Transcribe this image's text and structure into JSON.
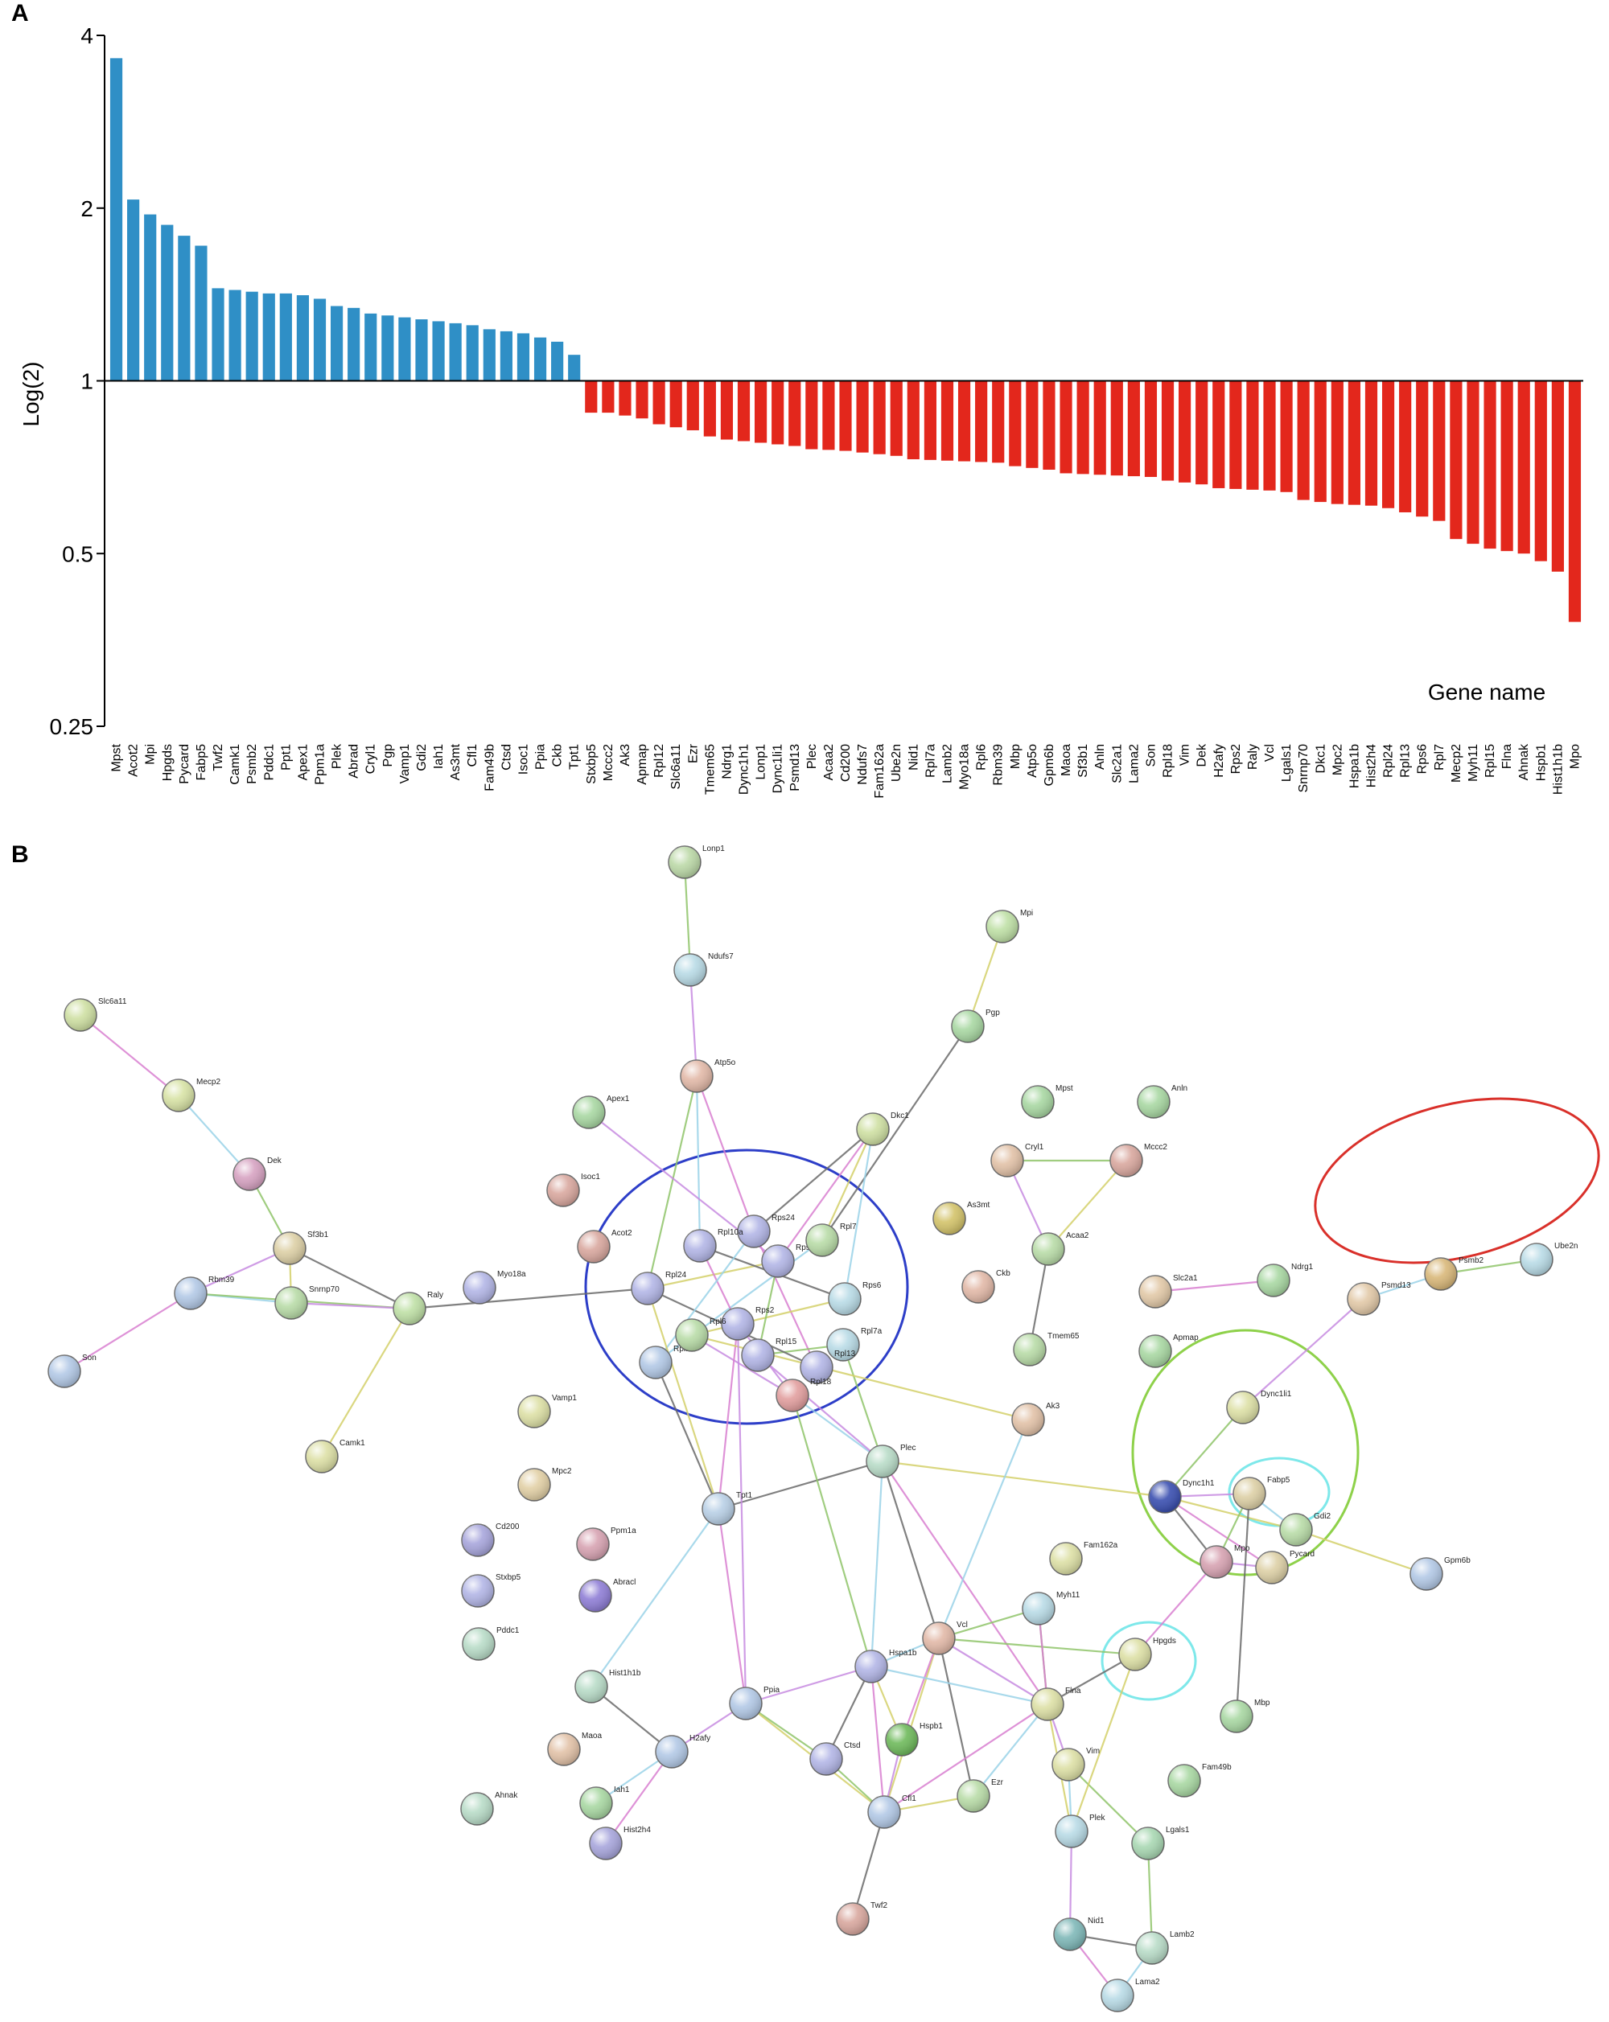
{
  "panels": {
    "a": "A",
    "b": "B"
  },
  "chart_data": {
    "type": "bar",
    "ylabel": "Log(2)",
    "xlabel": "Gene name",
    "y_scale": "log2",
    "baseline": 1,
    "yticks": [
      4,
      2,
      1,
      0.5,
      0.25
    ],
    "ylim": [
      0.25,
      4
    ],
    "colors": {
      "up": "#2f8fc6",
      "down": "#e3271c"
    },
    "categories": [
      "Mpst",
      "Acot2",
      "Mpi",
      "Hpgds",
      "Pycard",
      "Fabp5",
      "Twf2",
      "Camk1",
      "Psmb2",
      "Pddc1",
      "Ppt1",
      "Apex1",
      "Ppm1a",
      "Plek",
      "Abrad",
      "Cryl1",
      "Pgp",
      "Vamp1",
      "Gdi2",
      "Iah1",
      "As3mt",
      "Cfl1",
      "Fam49b",
      "Ctsd",
      "Isoc1",
      "Ppia",
      "Ckb",
      "Tpt1",
      "Stxbp5",
      "Mccc2",
      "Ak3",
      "Apmap",
      "Rpl12",
      "Slc6a11",
      "Ezr",
      "Tmem65",
      "Ndrg1",
      "Dync1h1",
      "Lonp1",
      "Dync1li1",
      "Psmd13",
      "Plec",
      "Acaa2",
      "Cd200",
      "Ndufs7",
      "Fam162a",
      "Ube2n",
      "Nid1",
      "Rpl7a",
      "Lamb2",
      "Myo18a",
      "Rpl6",
      "Rbm39",
      "Mbp",
      "Atp5o",
      "Gpm6b",
      "Maoa",
      "Sf3b1",
      "Anln",
      "Slc2a1",
      "Lama2",
      "Son",
      "Rpl18",
      "Vim",
      "Dek",
      "H2afy",
      "Rps2",
      "Raly",
      "Vcl",
      "Lgals1",
      "Snrnp70",
      "Dkc1",
      "Mpc2",
      "Hspa1b",
      "Hist2h4",
      "Rpl24",
      "Rpl13",
      "Rps6",
      "Rpl7",
      "Mecp2",
      "Myh11",
      "Rpl15",
      "Flna",
      "Ahnak",
      "Hspb1",
      "Hist1h1b",
      "Mpo"
    ],
    "values": [
      3.65,
      2.07,
      1.95,
      1.87,
      1.79,
      1.72,
      1.45,
      1.44,
      1.43,
      1.42,
      1.42,
      1.41,
      1.39,
      1.35,
      1.34,
      1.31,
      1.3,
      1.29,
      1.28,
      1.27,
      1.26,
      1.25,
      1.23,
      1.22,
      1.21,
      1.19,
      1.17,
      1.11,
      0.88,
      0.88,
      0.87,
      0.86,
      0.84,
      0.83,
      0.82,
      0.8,
      0.79,
      0.785,
      0.78,
      0.775,
      0.77,
      0.76,
      0.758,
      0.755,
      0.75,
      0.745,
      0.74,
      0.73,
      0.728,
      0.726,
      0.724,
      0.722,
      0.72,
      0.71,
      0.705,
      0.7,
      0.69,
      0.688,
      0.686,
      0.684,
      0.682,
      0.68,
      0.67,
      0.665,
      0.66,
      0.65,
      0.648,
      0.646,
      0.644,
      0.64,
      0.62,
      0.615,
      0.61,
      0.608,
      0.606,
      0.6,
      0.59,
      0.58,
      0.57,
      0.53,
      0.52,
      0.51,
      0.505,
      0.5,
      0.485,
      0.465,
      0.38
    ]
  },
  "network": {
    "nodes": [
      {
        "id": "Lonp1",
        "label": "Lonp1",
        "color": "#bcd9a8"
      },
      {
        "id": "Ndufs7",
        "label": "Ndufs7",
        "color": "#b9dbe6"
      },
      {
        "id": "Mpi",
        "label": "Mpi",
        "color": "#bfe0a6"
      },
      {
        "id": "Pgp",
        "label": "Pgp",
        "color": "#a9d8a3"
      },
      {
        "id": "Atp5o",
        "label": "Atp5o",
        "color": "#e2b9a8"
      },
      {
        "id": "Slc6a11",
        "label": "Slc6a11",
        "color": "#cfe0a3"
      },
      {
        "id": "Mecp2",
        "label": "Mecp2",
        "color": "#d8e3a6"
      },
      {
        "id": "Apex1",
        "label": "Apex1",
        "color": "#a9d8a3"
      },
      {
        "id": "Dkc1",
        "label": "Dkc1",
        "color": "#cfe0a3"
      },
      {
        "id": "Mpst",
        "label": "Mpst",
        "color": "#a9d8a3"
      },
      {
        "id": "Anln",
        "label": "Anln",
        "color": "#a9d8a3"
      },
      {
        "id": "Cryl1",
        "label": "Cryl1",
        "color": "#e2c2a8"
      },
      {
        "id": "Mccc2",
        "label": "Mccc2",
        "color": "#d9a89f"
      },
      {
        "id": "Dek",
        "label": "Dek",
        "color": "#d7a3c2"
      },
      {
        "id": "Isoc1",
        "label": "Isoc1",
        "color": "#d9a89f"
      },
      {
        "id": "As3mt",
        "label": "As3mt",
        "color": "#d3c36a"
      },
      {
        "id": "Acaa2",
        "label": "Acaa2",
        "color": "#b9dca8"
      },
      {
        "id": "Acot2",
        "label": "Acot2",
        "color": "#d9a89f"
      },
      {
        "id": "Sf3b1",
        "label": "Sf3b1",
        "color": "#ddd0a6"
      },
      {
        "id": "Rps24",
        "label": "Rps24",
        "color": "#b3b6e6"
      },
      {
        "id": "Rpl10a",
        "label": "Rpl10a",
        "color": "#b3b6e6"
      },
      {
        "id": "Rps23",
        "label": "Rps23",
        "color": "#b3b6e6"
      },
      {
        "id": "Rpl7",
        "label": "Rpl7",
        "color": "#b9dca8"
      },
      {
        "id": "Myo18a",
        "label": "Myo18a",
        "color": "#b3b6e6"
      },
      {
        "id": "Ckb",
        "label": "Ckb",
        "color": "#e2b9a8"
      },
      {
        "id": "Slc2a1",
        "label": "Slc2a1",
        "color": "#e2c9a8"
      },
      {
        "id": "Ndrg1",
        "label": "Ndrg1",
        "color": "#a9d8a3"
      },
      {
        "id": "Ube2n",
        "label": "Ube2n",
        "color": "#b9dbe6"
      },
      {
        "id": "Rbm39",
        "label": "Rbm39",
        "color": "#b3c9e6"
      },
      {
        "id": "Snrnp70",
        "label": "Snrnp70",
        "color": "#b9dca8"
      },
      {
        "id": "Raly",
        "label": "Raly",
        "color": "#bfe0a6"
      },
      {
        "id": "Rpl24",
        "label": "Rpl24",
        "color": "#b3b6e6"
      },
      {
        "id": "Rps6",
        "label": "Rps6",
        "color": "#b9dbe6"
      },
      {
        "id": "Rpl7a",
        "label": "Rpl7a",
        "color": "#b9dbe6"
      },
      {
        "id": "Rpl13",
        "label": "Rpl13",
        "color": "#b3b6e6"
      },
      {
        "id": "Rpl18",
        "label": "Rpl18",
        "color": "#e29f9f"
      },
      {
        "id": "Rpl15",
        "label": "Rpl15",
        "color": "#b3b6e6"
      },
      {
        "id": "Rps2",
        "label": "Rps2",
        "color": "#b3b6e6"
      },
      {
        "id": "Rpl12",
        "label": "Rpl12",
        "color": "#b3c9e6"
      },
      {
        "id": "Rpl6",
        "label": "Rpl6",
        "color": "#b9dca8"
      },
      {
        "id": "Tmem65",
        "label": "Tmem65",
        "color": "#b9dca8"
      },
      {
        "id": "Apmap",
        "label": "Apmap",
        "color": "#a9d8a3"
      },
      {
        "id": "Psmd13",
        "label": "Psmd13",
        "color": "#e2c9a8"
      },
      {
        "id": "Psmb2",
        "label": "Psmb2",
        "color": "#d9b87a"
      },
      {
        "id": "Son",
        "label": "Son",
        "color": "#b3c9e6"
      },
      {
        "id": "Vamp1",
        "label": "Vamp1",
        "color": "#dde0a6"
      },
      {
        "id": "Ak3",
        "label": "Ak3",
        "color": "#e2c2a8"
      },
      {
        "id": "Dync1li1",
        "label": "Dync1li1",
        "color": "#dde0a6"
      },
      {
        "id": "Camk1",
        "label": "Camk1",
        "color": "#dde0a6"
      },
      {
        "id": "Mpc2",
        "label": "Mpc2",
        "color": "#e2d0a6"
      },
      {
        "id": "Plec",
        "label": "Plec",
        "color": "#b9dcc8"
      },
      {
        "id": "Tpt1",
        "label": "Tpt1",
        "color": "#b9d0e6"
      },
      {
        "id": "Dync1h1",
        "label": "Dync1h1",
        "color": "#3a4fb0"
      },
      {
        "id": "Fabp5",
        "label": "Fabp5",
        "color": "#ddd0a6"
      },
      {
        "id": "Gdi2",
        "label": "Gdi2",
        "color": "#b9dca8"
      },
      {
        "id": "Cd200",
        "label": "Cd200",
        "color": "#a8a6dc"
      },
      {
        "id": "Ppm1a",
        "label": "Ppm1a",
        "color": "#d7a3b2"
      },
      {
        "id": "Fam162a",
        "label": "Fam162a",
        "color": "#dde0a6"
      },
      {
        "id": "Mpo",
        "label": "Mpo",
        "color": "#d7a3b2"
      },
      {
        "id": "Pycard",
        "label": "Pycard",
        "color": "#ddd0a6"
      },
      {
        "id": "Gpm6b",
        "label": "Gpm6b",
        "color": "#b3c9e6"
      },
      {
        "id": "Stxbp5",
        "label": "Stxbp5",
        "color": "#b3b6e6"
      },
      {
        "id": "Abracl",
        "label": "Abracl",
        "color": "#8f7ed6"
      },
      {
        "id": "Myh11",
        "label": "Myh11",
        "color": "#b9dbe6"
      },
      {
        "id": "Vcl",
        "label": "Vcl",
        "color": "#e2b9a8"
      },
      {
        "id": "Pddc1",
        "label": "Pddc1",
        "color": "#b9dcc8"
      },
      {
        "id": "Hist1h1b",
        "label": "Hist1h1b",
        "color": "#b9dcc8"
      },
      {
        "id": "Hspa1b",
        "label": "Hspa1b",
        "color": "#b3b6e6"
      },
      {
        "id": "Ppia",
        "label": "Ppia",
        "color": "#b3c9e6"
      },
      {
        "id": "Hpgds",
        "label": "Hpgds",
        "color": "#dde0a6"
      },
      {
        "id": "Flna",
        "label": "Flna",
        "color": "#dde0a6"
      },
      {
        "id": "Mbp",
        "label": "Mbp",
        "color": "#a9d8a3"
      },
      {
        "id": "Maoa",
        "label": "Maoa",
        "color": "#e2c2a8"
      },
      {
        "id": "H2afy",
        "label": "H2afy",
        "color": "#b3c9e6"
      },
      {
        "id": "Ctsd",
        "label": "Ctsd",
        "color": "#b3b6e6"
      },
      {
        "id": "Hspb1",
        "label": "Hspb1",
        "color": "#6fba5c"
      },
      {
        "id": "Vim",
        "label": "Vim",
        "color": "#dde0a6"
      },
      {
        "id": "Fam49b",
        "label": "Fam49b",
        "color": "#a9d8a3"
      },
      {
        "id": "Ahnak",
        "label": "Ahnak",
        "color": "#b9dcc8"
      },
      {
        "id": "Iah1",
        "label": "Iah1",
        "color": "#a9d8a3"
      },
      {
        "id": "Ezr",
        "label": "Ezr",
        "color": "#b9dca8"
      },
      {
        "id": "Cfl1",
        "label": "Cfl1",
        "color": "#b3c9e6"
      },
      {
        "id": "Plek",
        "label": "Plek",
        "color": "#b9dbe6"
      },
      {
        "id": "Lgals1",
        "label": "Lgals1",
        "color": "#a9d8b3"
      },
      {
        "id": "Hist2h4",
        "label": "Hist2h4",
        "color": "#a8a6dc"
      },
      {
        "id": "Twf2",
        "label": "Twf2",
        "color": "#d9a89f"
      },
      {
        "id": "Nid1",
        "label": "Nid1",
        "color": "#7fb8b8"
      },
      {
        "id": "Lamb2",
        "label": "Lamb2",
        "color": "#b9dcc8"
      },
      {
        "id": "Lama2",
        "label": "Lama2",
        "color": "#b9dbe6"
      }
    ],
    "edges": [
      [
        "Lonp1",
        "Ndufs7"
      ],
      [
        "Ndufs7",
        "Atp5o"
      ],
      [
        "Mpi",
        "Pgp"
      ],
      [
        "Pgp",
        "Rpl7"
      ],
      [
        "Slc6a11",
        "Mecp2"
      ],
      [
        "Mecp2",
        "Dek"
      ],
      [
        "Dek",
        "Sf3b1"
      ],
      [
        "Sf3b1",
        "Rbm39"
      ],
      [
        "Sf3b1",
        "Snrnp70"
      ],
      [
        "Sf3b1",
        "Raly"
      ],
      [
        "Rbm39",
        "Son"
      ],
      [
        "Rbm39",
        "Snrnp70"
      ],
      [
        "Rbm39",
        "Raly"
      ],
      [
        "Snrnp70",
        "Raly"
      ],
      [
        "Raly",
        "Camk1"
      ],
      [
        "Raly",
        "Rpl24"
      ],
      [
        "Atp5o",
        "Rps24"
      ],
      [
        "Atp5o",
        "Rpl10a"
      ],
      [
        "Atp5o",
        "Rpl24"
      ],
      [
        "Apex1",
        "Rps23"
      ],
      [
        "Dkc1",
        "Rpl7"
      ],
      [
        "Dkc1",
        "Rps24"
      ],
      [
        "Dkc1",
        "Rps23"
      ],
      [
        "Dkc1",
        "Rps6"
      ],
      [
        "Cryl1",
        "Mccc2"
      ],
      [
        "Cryl1",
        "Acaa2"
      ],
      [
        "Mccc2",
        "Acaa2"
      ],
      [
        "Acaa2",
        "Tmem65"
      ],
      [
        "Slc2a1",
        "Ndrg1"
      ],
      [
        "Psmd13",
        "Psmb2"
      ],
      [
        "Psmb2",
        "Ube2n"
      ],
      [
        "Psmd13",
        "Dync1li1"
      ],
      [
        "Rpl24",
        "Rps23"
      ],
      [
        "Rpl10a",
        "Rps6"
      ],
      [
        "Rps24",
        "Rpl13"
      ],
      [
        "Rpl7",
        "Rpl12"
      ],
      [
        "Rpl7a",
        "Rpl15"
      ],
      [
        "Rpl18",
        "Rps2"
      ],
      [
        "Rps6",
        "Rpl6"
      ],
      [
        "Rpl13",
        "Rpl24"
      ],
      [
        "Rps2",
        "Rpl10a"
      ],
      [
        "Rpl12",
        "Rps24"
      ],
      [
        "Rpl15",
        "Rps23"
      ],
      [
        "Rpl6",
        "Rpl18"
      ],
      [
        "Rpl24",
        "Tpt1"
      ],
      [
        "Rpl12",
        "Tpt1"
      ],
      [
        "Rps2",
        "Tpt1"
      ],
      [
        "Rpl18",
        "Plec"
      ],
      [
        "Rpl7a",
        "Plec"
      ],
      [
        "Rpl15",
        "Plec"
      ],
      [
        "Rpl6",
        "Ak3"
      ],
      [
        "Tpt1",
        "Plec"
      ],
      [
        "Tpt1",
        "Ppia"
      ],
      [
        "Tpt1",
        "Hist1h1b"
      ],
      [
        "Rpl18",
        "Hspa1b"
      ],
      [
        "Rps2",
        "Ppia"
      ],
      [
        "Plec",
        "Dync1h1"
      ],
      [
        "Plec",
        "Vcl"
      ],
      [
        "Plec",
        "Flna"
      ],
      [
        "Plec",
        "Hspa1b"
      ],
      [
        "Dync1h1",
        "Dync1li1"
      ],
      [
        "Dync1h1",
        "Fabp5"
      ],
      [
        "Dync1h1",
        "Gdi2"
      ],
      [
        "Dync1h1",
        "Mpo"
      ],
      [
        "Dync1h1",
        "Pycard"
      ],
      [
        "Fabp5",
        "Gdi2"
      ],
      [
        "Fabp5",
        "Mpo"
      ],
      [
        "Mpo",
        "Pycard"
      ],
      [
        "Gdi2",
        "Gpm6b"
      ],
      [
        "Fabp5",
        "Mbp"
      ],
      [
        "Mpo",
        "Hpgds"
      ],
      [
        "Vcl",
        "Hspa1b"
      ],
      [
        "Vcl",
        "Myh11"
      ],
      [
        "Vcl",
        "Flna"
      ],
      [
        "Vcl",
        "Cfl1"
      ],
      [
        "Vcl",
        "Ezr"
      ],
      [
        "Vcl",
        "Hspb1"
      ],
      [
        "Vcl",
        "Ak3"
      ],
      [
        "Vcl",
        "Hpgds"
      ],
      [
        "Hspa1b",
        "Ppia"
      ],
      [
        "Hspa1b",
        "Hspb1"
      ],
      [
        "Hspa1b",
        "Ctsd"
      ],
      [
        "Hspa1b",
        "Cfl1"
      ],
      [
        "Hspa1b",
        "Flna"
      ],
      [
        "Ppia",
        "Ctsd"
      ],
      [
        "Ppia",
        "H2afy"
      ],
      [
        "Ppia",
        "Cfl1"
      ],
      [
        "H2afy",
        "Hist1h1b"
      ],
      [
        "H2afy",
        "Hist2h4"
      ],
      [
        "H2afy",
        "Iah1"
      ],
      [
        "Ctsd",
        "Cfl1"
      ],
      [
        "Hspb1",
        "Cfl1"
      ],
      [
        "Cfl1",
        "Ezr"
      ],
      [
        "Cfl1",
        "Twf2"
      ],
      [
        "Cfl1",
        "Flna"
      ],
      [
        "Ezr",
        "Flna"
      ],
      [
        "Flna",
        "Myh11"
      ],
      [
        "Flna",
        "Vim"
      ],
      [
        "Flna",
        "Plek"
      ],
      [
        "Flna",
        "Hpgds"
      ],
      [
        "Myh11",
        "Flna"
      ],
      [
        "Vim",
        "Plek"
      ],
      [
        "Vim",
        "Lgals1"
      ],
      [
        "Plek",
        "Nid1"
      ],
      [
        "Plek",
        "Hpgds"
      ],
      [
        "Nid1",
        "Lamb2"
      ],
      [
        "Nid1",
        "Lama2"
      ],
      [
        "Lamb2",
        "Lama2"
      ],
      [
        "Lgals1",
        "Lamb2"
      ]
    ]
  }
}
